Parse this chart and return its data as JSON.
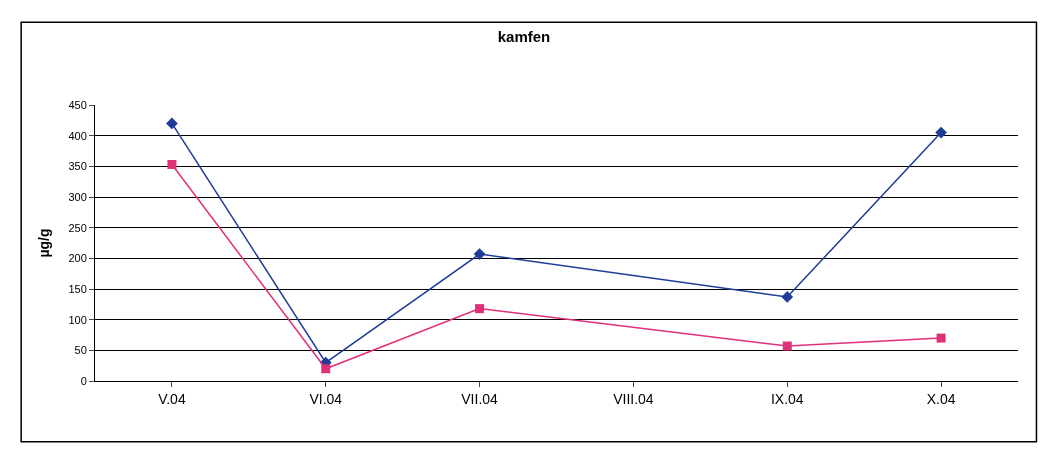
{
  "chart_data": {
    "type": "line",
    "title": "kamfen",
    "ylabel": "µg/g",
    "categories": [
      "V.04",
      "VI.04",
      "VII.04",
      "VIII.04",
      "IX.04",
      "X.04"
    ],
    "series": [
      {
        "color": "#1f3c98",
        "values": [
          420,
          30,
          207,
          null,
          137,
          405
        ],
        "marker": "diamond"
      },
      {
        "color": "#e0307a",
        "values": [
          353,
          20,
          118,
          null,
          57,
          70
        ],
        "marker": "square"
      }
    ],
    "ylim": [
      0,
      450
    ],
    "yticks": [
      0,
      50,
      100,
      150,
      200,
      250,
      300,
      350,
      400,
      450
    ],
    "grid": "y",
    "line_style": "solid"
  }
}
